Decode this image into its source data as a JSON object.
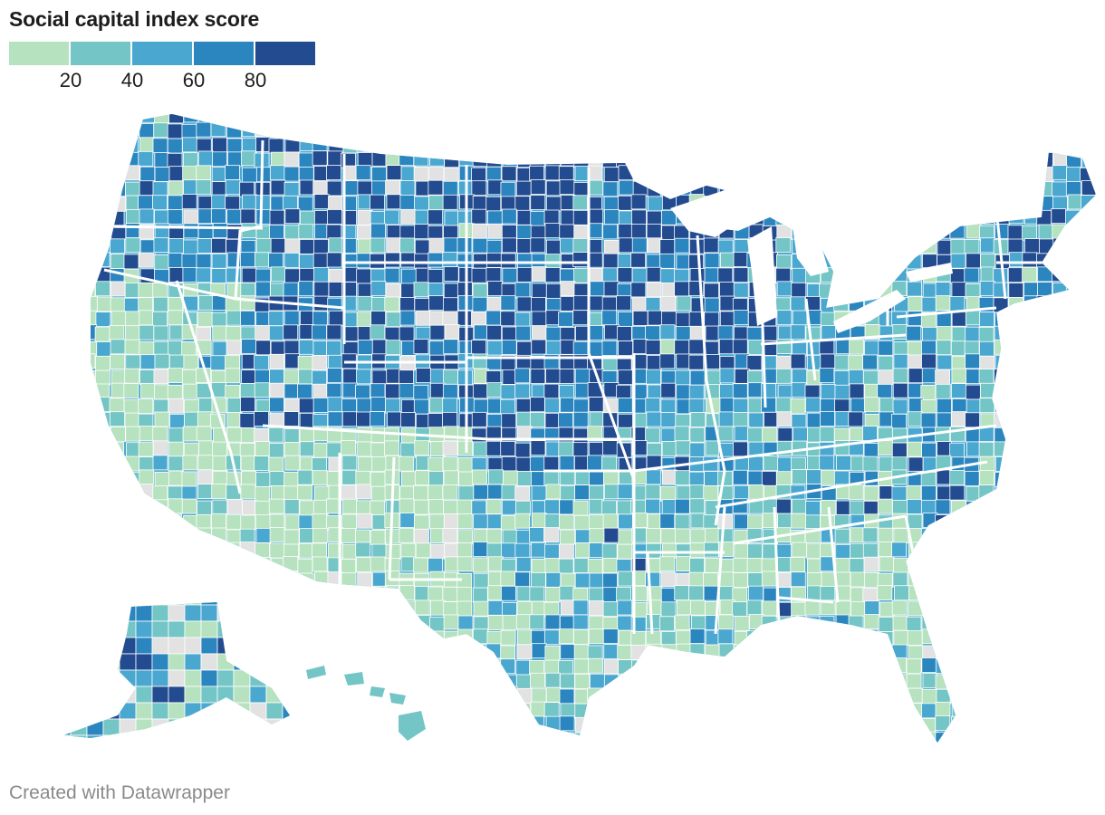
{
  "title": "Social capital index score",
  "legend": {
    "colors": [
      "#b6e2bf",
      "#74c5c6",
      "#4aa7d0",
      "#2b86c0",
      "#234b8f"
    ],
    "ticks": [
      "20",
      "40",
      "60",
      "80"
    ]
  },
  "map": {
    "no_data_color": "#e2e2e2",
    "state_border_color": "#ffffff"
  },
  "footer": {
    "credit": "Created with Datawrapper"
  }
}
